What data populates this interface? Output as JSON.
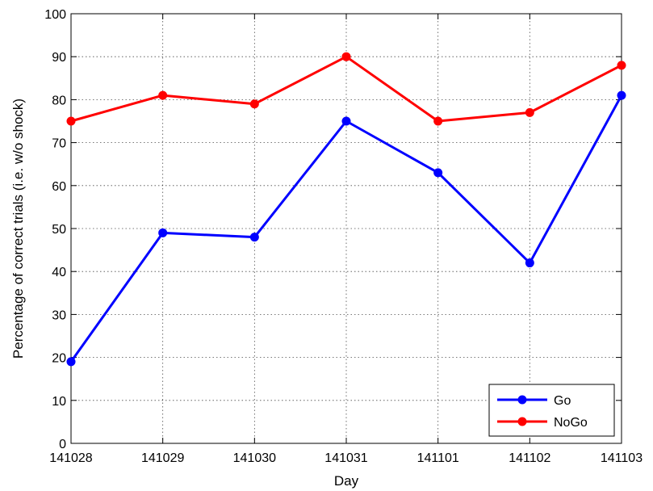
{
  "chart_data": {
    "type": "line",
    "title": "",
    "xlabel": "Day",
    "ylabel": "Percentage of correct trials (i.e. w/o shock)",
    "categories": [
      "141028",
      "141029",
      "141030",
      "141031",
      "141101",
      "141102",
      "141103"
    ],
    "ylim": [
      0,
      100
    ],
    "yticks": [
      0,
      10,
      20,
      30,
      40,
      50,
      60,
      70,
      80,
      90,
      100
    ],
    "grid": true,
    "legend_position": "bottom-right",
    "series": [
      {
        "name": "Go",
        "color": "#0000ff",
        "values": [
          19,
          49,
          48,
          75,
          63,
          42,
          81
        ]
      },
      {
        "name": "NoGo",
        "color": "#ff0000",
        "values": [
          75,
          81,
          79,
          90,
          75,
          77,
          88
        ]
      }
    ]
  }
}
